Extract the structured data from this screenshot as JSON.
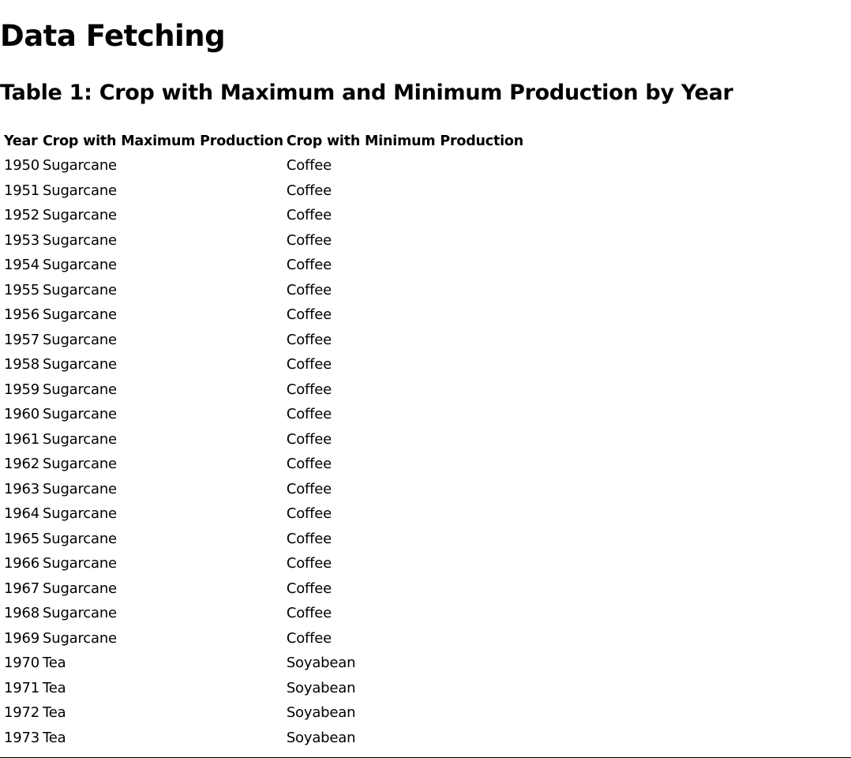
{
  "page": {
    "title": "Data Fetching"
  },
  "table": {
    "title": "Table 1: Crop with Maximum and Minimum Production by Year",
    "headers": {
      "year": "Year",
      "max": "Crop with Maximum Production",
      "min": "Crop with Minimum Production"
    },
    "rows": [
      {
        "year": "1950",
        "max": "Sugarcane",
        "min": "Coffee"
      },
      {
        "year": "1951",
        "max": "Sugarcane",
        "min": "Coffee"
      },
      {
        "year": "1952",
        "max": "Sugarcane",
        "min": "Coffee"
      },
      {
        "year": "1953",
        "max": "Sugarcane",
        "min": "Coffee"
      },
      {
        "year": "1954",
        "max": "Sugarcane",
        "min": "Coffee"
      },
      {
        "year": "1955",
        "max": "Sugarcane",
        "min": "Coffee"
      },
      {
        "year": "1956",
        "max": "Sugarcane",
        "min": "Coffee"
      },
      {
        "year": "1957",
        "max": "Sugarcane",
        "min": "Coffee"
      },
      {
        "year": "1958",
        "max": "Sugarcane",
        "min": "Coffee"
      },
      {
        "year": "1959",
        "max": "Sugarcane",
        "min": "Coffee"
      },
      {
        "year": "1960",
        "max": "Sugarcane",
        "min": "Coffee"
      },
      {
        "year": "1961",
        "max": "Sugarcane",
        "min": "Coffee"
      },
      {
        "year": "1962",
        "max": "Sugarcane",
        "min": "Coffee"
      },
      {
        "year": "1963",
        "max": "Sugarcane",
        "min": "Coffee"
      },
      {
        "year": "1964",
        "max": "Sugarcane",
        "min": "Coffee"
      },
      {
        "year": "1965",
        "max": "Sugarcane",
        "min": "Coffee"
      },
      {
        "year": "1966",
        "max": "Sugarcane",
        "min": "Coffee"
      },
      {
        "year": "1967",
        "max": "Sugarcane",
        "min": "Coffee"
      },
      {
        "year": "1968",
        "max": "Sugarcane",
        "min": "Coffee"
      },
      {
        "year": "1969",
        "max": "Sugarcane",
        "min": "Coffee"
      },
      {
        "year": "1970",
        "max": "Tea",
        "min": "Soyabean"
      },
      {
        "year": "1971",
        "max": "Tea",
        "min": "Soyabean"
      },
      {
        "year": "1972",
        "max": "Tea",
        "min": "Soyabean"
      },
      {
        "year": "1973",
        "max": "Tea",
        "min": "Soyabean"
      }
    ]
  }
}
